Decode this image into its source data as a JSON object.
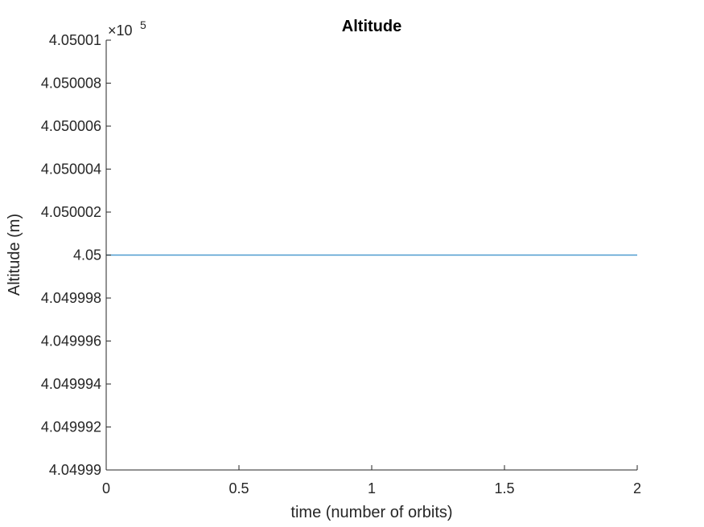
{
  "chart_data": {
    "type": "line",
    "title": "Altitude",
    "xlabel": "time (number of orbits)",
    "ylabel": "Altitude (m)",
    "xlim": [
      0,
      2
    ],
    "ylim": [
      4.04999,
      4.05001
    ],
    "x_ticks": [
      0,
      0.5,
      1,
      1.5,
      2
    ],
    "x_tick_labels": [
      "0",
      "0.5",
      "1",
      "1.5",
      "2"
    ],
    "y_ticks": [
      4.04999,
      4.049992,
      4.049994,
      4.049996,
      4.049998,
      4.05,
      4.050002,
      4.050004,
      4.050006,
      4.050008,
      4.05001
    ],
    "y_tick_labels": [
      "4.04999",
      "4.049992",
      "4.049994",
      "4.049996",
      "4.049998",
      "4.05",
      "4.050002",
      "4.050004",
      "4.050006",
      "4.050008",
      "4.05001"
    ],
    "y_exponent_label": {
      "base": "×10",
      "power": "5"
    },
    "grid": false,
    "series": [
      {
        "color": "#4d9bd0",
        "x": [
          0,
          2
        ],
        "y": [
          4.05,
          4.05
        ]
      }
    ]
  }
}
